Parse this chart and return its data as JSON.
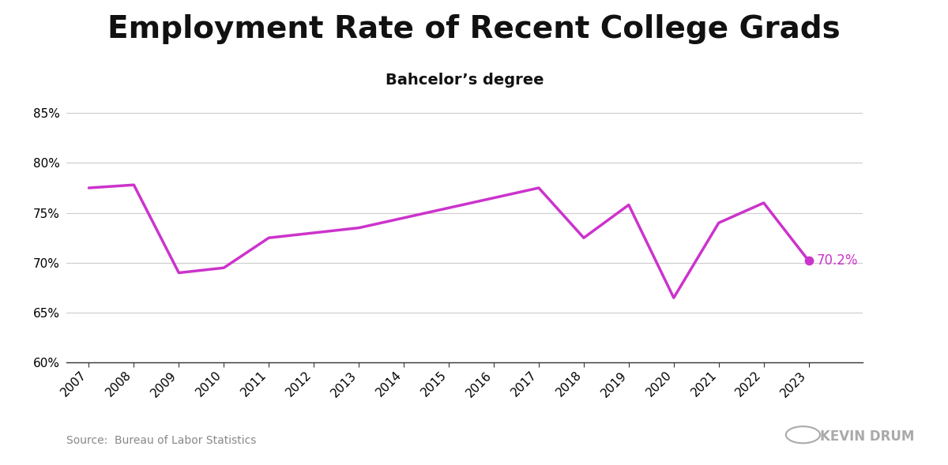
{
  "title": "Employment Rate of Recent College Grads",
  "subtitle": "Bahcelor’s degree",
  "source": "Source:  Bureau of Labor Statistics",
  "years": [
    2007,
    2008,
    2009,
    2010,
    2011,
    2012,
    2013,
    2014,
    2015,
    2016,
    2017,
    2018,
    2019,
    2020,
    2021,
    2022,
    2023
  ],
  "values": [
    77.5,
    77.8,
    69.0,
    69.5,
    72.5,
    73.0,
    73.5,
    74.5,
    75.5,
    76.5,
    77.5,
    72.5,
    75.8,
    66.5,
    74.0,
    76.0,
    70.2
  ],
  "line_color": "#CC33CC",
  "last_point_label": "70.2%",
  "last_point_color": "#CC33CC",
  "ylim": [
    60,
    87
  ],
  "yticks": [
    60,
    65,
    70,
    75,
    80,
    85
  ],
  "ytick_labels": [
    "60%",
    "65%",
    "70%",
    "75%",
    "80%",
    "85%"
  ],
  "background_color": "#ffffff",
  "grid_color": "#cccccc",
  "title_fontsize": 28,
  "subtitle_fontsize": 14,
  "axis_fontsize": 11,
  "annotation_fontsize": 12
}
